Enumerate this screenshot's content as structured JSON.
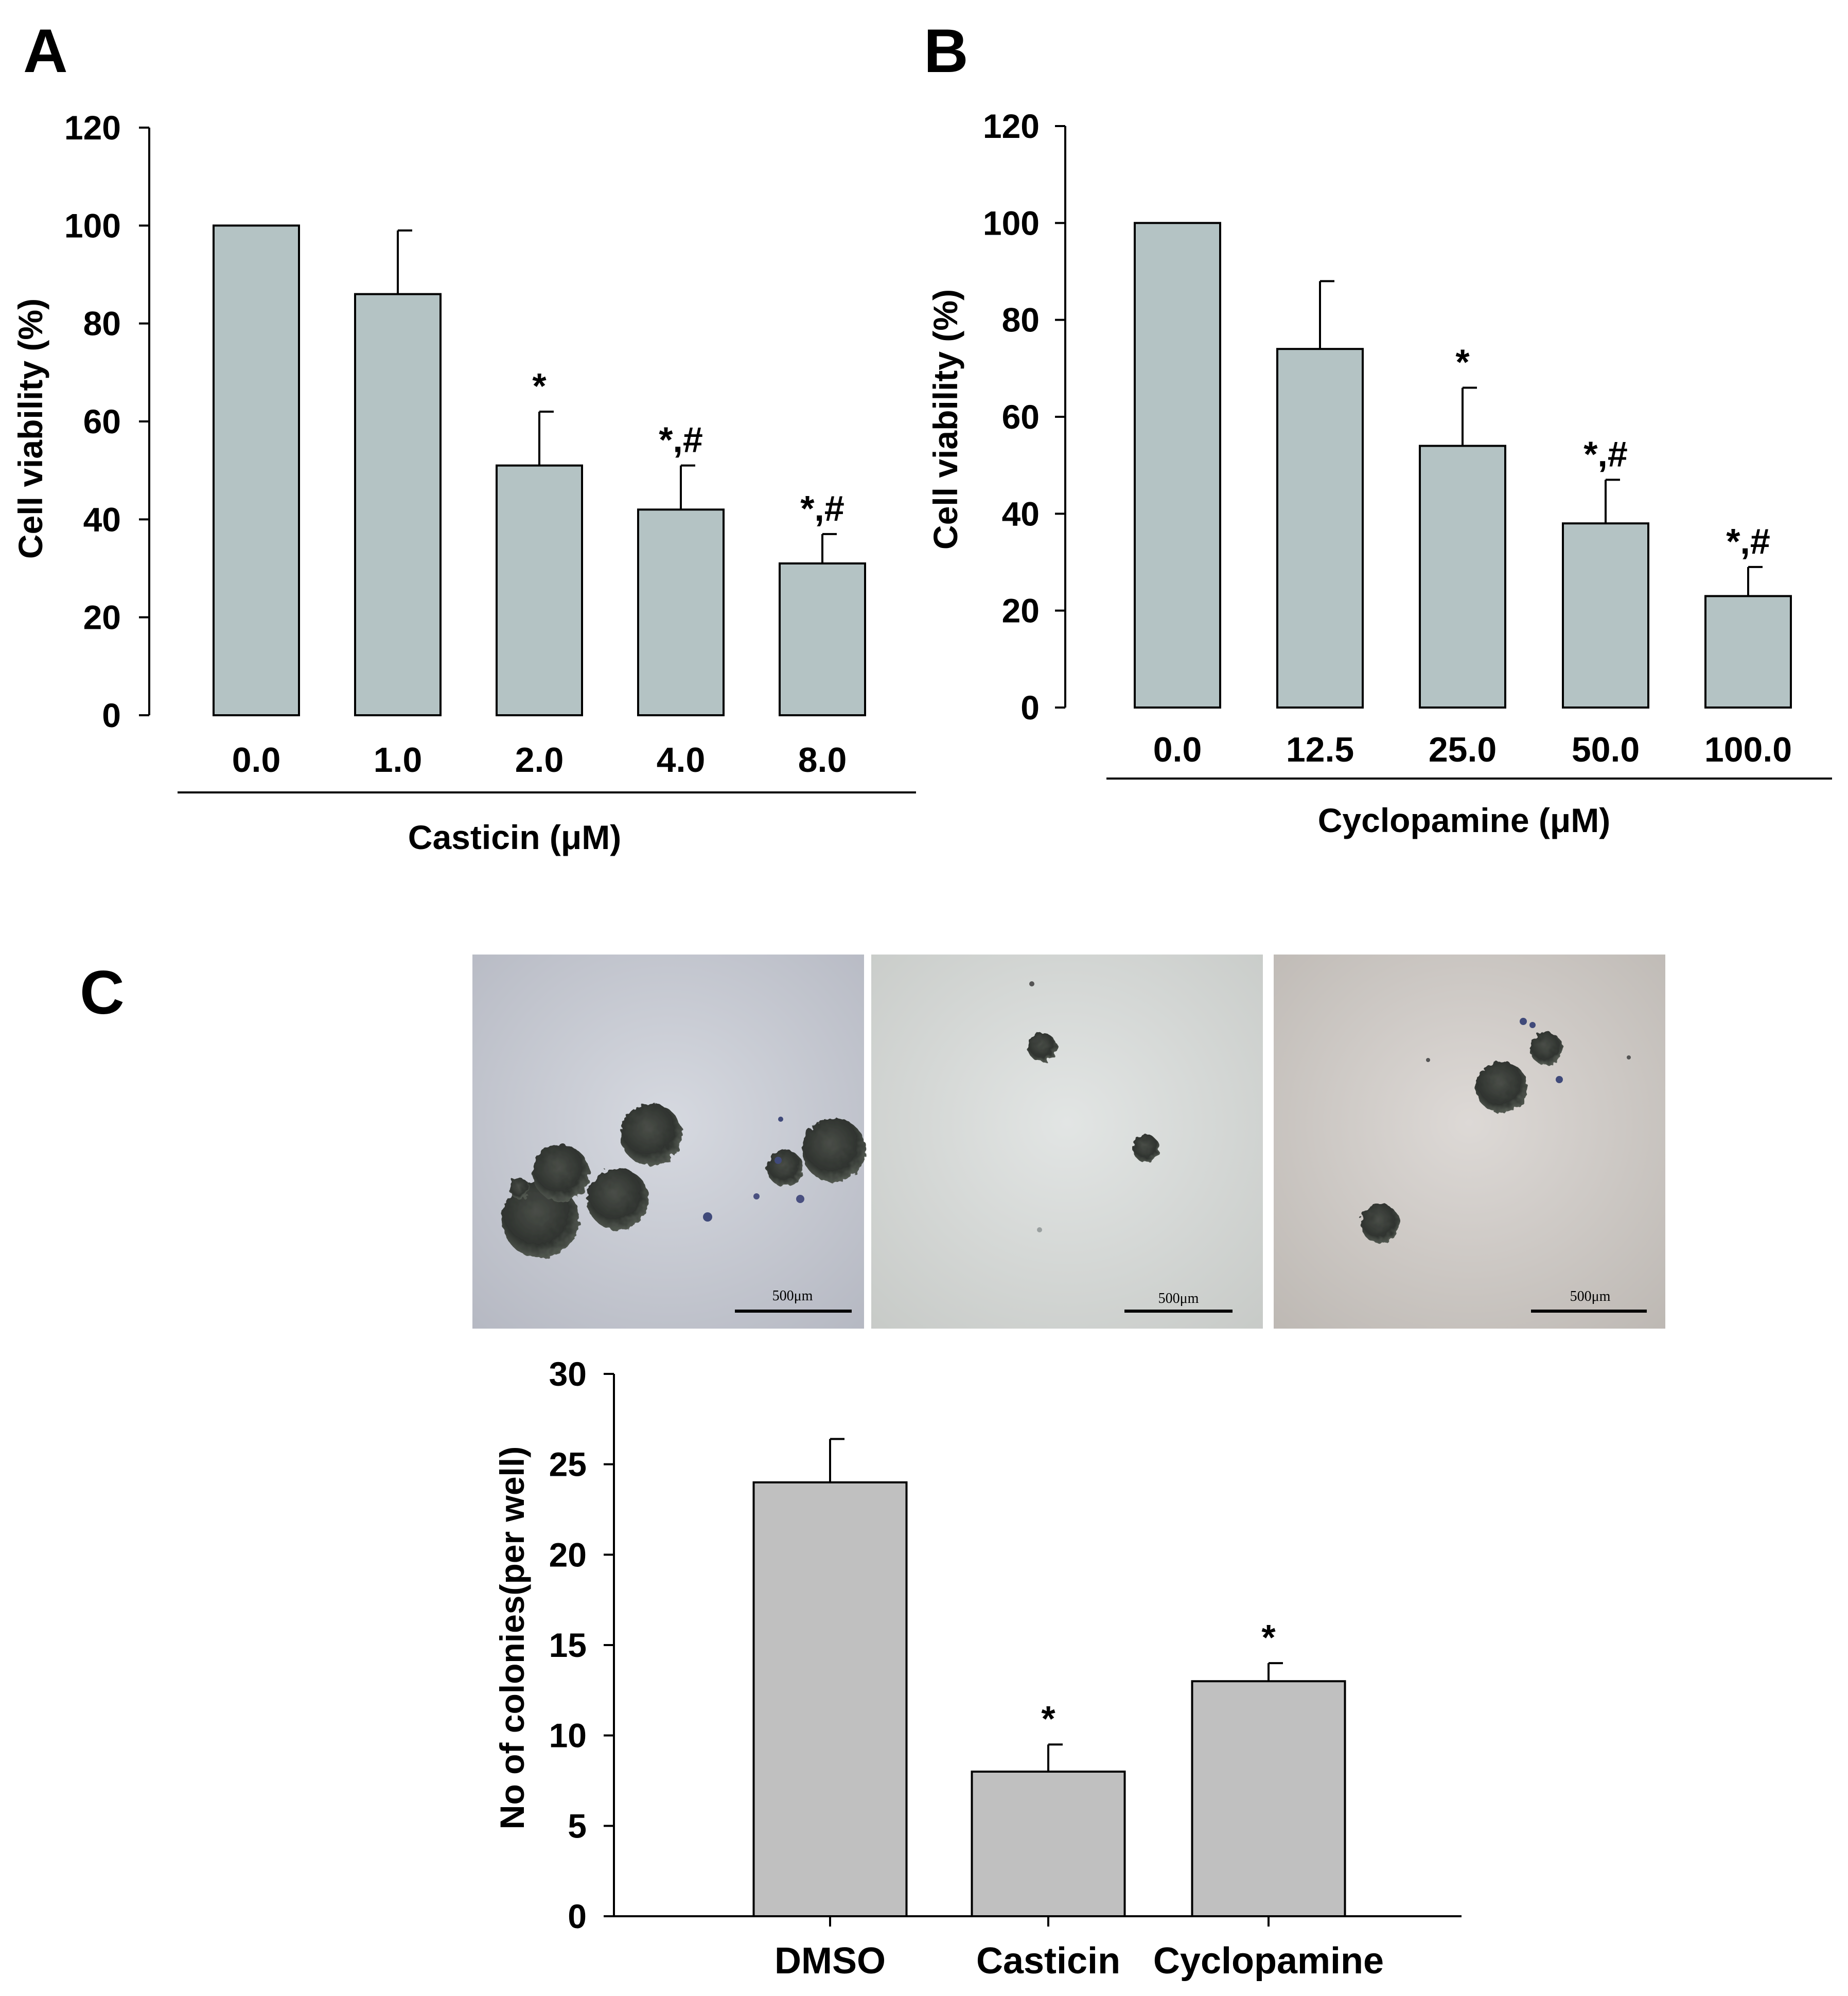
{
  "panels": {
    "a": {
      "letter": "A"
    },
    "b": {
      "letter": "B"
    },
    "c": {
      "letter": "C"
    }
  },
  "colors": {
    "bar_fill_ab": "#b4c3c4",
    "bar_fill_c": "#c0c0c0",
    "stroke": "#000000"
  },
  "micrographs": {
    "scale_bar_label": "500μm",
    "images": [
      "DMSO colonies micrograph",
      "Casticin colonies micrograph",
      "Cyclopamine colonies micrograph"
    ]
  },
  "chart_data": [
    {
      "id": "A",
      "type": "bar",
      "categories": [
        "0.0",
        "1.0",
        "2.0",
        "4.0",
        "8.0"
      ],
      "values": [
        100,
        86,
        51,
        42,
        31
      ],
      "errors": [
        0,
        13,
        11,
        9,
        6
      ],
      "significance": [
        "",
        "",
        "*",
        "*,#",
        "*,#"
      ],
      "xlabel": "Casticin (μM)",
      "ylabel": "Cell viability (%)",
      "ylim": [
        0,
        120
      ],
      "yticks": [
        0,
        20,
        40,
        60,
        80,
        100,
        120
      ],
      "grid": false
    },
    {
      "id": "B",
      "type": "bar",
      "categories": [
        "0.0",
        "12.5",
        "25.0",
        "50.0",
        "100.0"
      ],
      "values": [
        100,
        74,
        54,
        38,
        23
      ],
      "errors": [
        0,
        14,
        12,
        9,
        6
      ],
      "significance": [
        "",
        "",
        "*",
        "*,#",
        "*,#"
      ],
      "xlabel": "Cyclopamine (μM)",
      "ylabel": "Cell viability (%)",
      "ylim": [
        0,
        120
      ],
      "yticks": [
        0,
        20,
        40,
        60,
        80,
        100,
        120
      ],
      "grid": false
    },
    {
      "id": "C",
      "type": "bar",
      "categories": [
        "DMSO",
        "Casticin",
        "Cyclopamine"
      ],
      "values": [
        24,
        8,
        13
      ],
      "errors": [
        2.4,
        1.5,
        1.0
      ],
      "significance": [
        "",
        "*",
        "*"
      ],
      "xlabel": "",
      "ylabel": "No of colonies(per well)",
      "ylim": [
        0,
        30
      ],
      "yticks": [
        0,
        5,
        10,
        15,
        20,
        25,
        30
      ],
      "grid": false
    }
  ]
}
